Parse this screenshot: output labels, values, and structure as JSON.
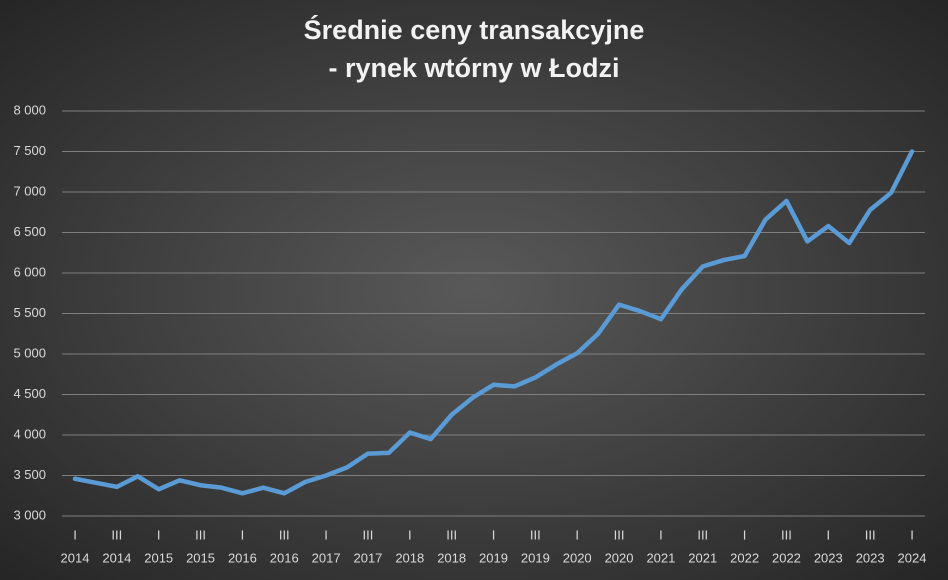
{
  "chart_data": {
    "type": "line",
    "title": [
      "Średnie ceny transakcyjne",
      "- rynek wtórny w Łodzi"
    ],
    "categories": [
      [
        "I",
        "2014"
      ],
      null,
      [
        "III",
        "2014"
      ],
      null,
      [
        "I",
        "2015"
      ],
      null,
      [
        "III",
        "2015"
      ],
      null,
      [
        "I",
        "2016"
      ],
      null,
      [
        "III",
        "2016"
      ],
      null,
      [
        "I",
        "2017"
      ],
      null,
      [
        "III",
        "2017"
      ],
      null,
      [
        "I",
        "2018"
      ],
      null,
      [
        "III",
        "2018"
      ],
      null,
      [
        "I",
        "2019"
      ],
      null,
      [
        "III",
        "2019"
      ],
      null,
      [
        "I",
        "2020"
      ],
      null,
      [
        "III",
        "2020"
      ],
      null,
      [
        "I",
        "2021"
      ],
      null,
      [
        "III",
        "2021"
      ],
      null,
      [
        "I",
        "2022"
      ],
      null,
      [
        "III",
        "2022"
      ],
      null,
      [
        "I",
        "2023"
      ],
      null,
      [
        "III",
        "2023"
      ],
      null,
      [
        "I",
        "2024"
      ]
    ],
    "series": [
      {
        "color": "#5b9bd5",
        "values": [
          3460,
          3410,
          3360,
          3490,
          3330,
          3440,
          3380,
          3350,
          3280,
          3350,
          3280,
          3420,
          3500,
          3600,
          3770,
          3780,
          4030,
          3950,
          4250,
          4460,
          4620,
          4600,
          4710,
          4870,
          5010,
          5250,
          5610,
          5530,
          5430,
          5800,
          6080,
          6160,
          6210,
          6660,
          6890,
          6390,
          6580,
          6370,
          6780,
          6990,
          7500
        ]
      }
    ],
    "ylim": [
      3000,
      8000
    ],
    "yticks": [
      {
        "value": 3000,
        "label": "3 000"
      },
      {
        "value": 3500,
        "label": "3 500"
      },
      {
        "value": 4000,
        "label": "4 000"
      },
      {
        "value": 4500,
        "label": "4 500"
      },
      {
        "value": 5000,
        "label": "5 000"
      },
      {
        "value": 5500,
        "label": "5 500"
      },
      {
        "value": 6000,
        "label": "6 000"
      },
      {
        "value": 6500,
        "label": "6 500"
      },
      {
        "value": 7000,
        "label": "7 000"
      },
      {
        "value": 7500,
        "label": "7 500"
      },
      {
        "value": 8000,
        "label": "8 000"
      }
    ],
    "grid": true
  }
}
